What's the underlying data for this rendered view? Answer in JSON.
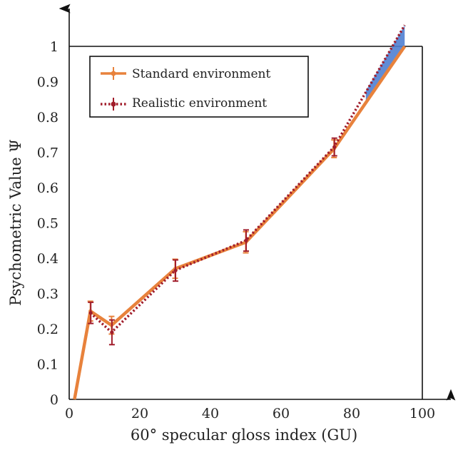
{
  "chart_data": {
    "type": "line",
    "title": "",
    "xlabel": "60° specular gloss index (GU)",
    "ylabel": "Psychometric Value  Ψ",
    "xlim": [
      0,
      100
    ],
    "ylim": [
      0,
      1
    ],
    "x_ticks": [
      "0",
      "20",
      "40",
      "60",
      "80",
      "100"
    ],
    "y_ticks": [
      "0",
      "0.1",
      "0.2",
      "0.3",
      "0.4",
      "0.5",
      "0.6",
      "0.7",
      "0.8",
      "0.9",
      "1"
    ],
    "legend_position": "top-left",
    "grid": false,
    "series": [
      {
        "name": "Standard environment",
        "color": "#e8823c",
        "style": "solid",
        "points": [
          {
            "x": 1.5,
            "y": 0.0
          },
          {
            "x": 6,
            "y": 0.25,
            "err": 0.028
          },
          {
            "x": 12,
            "y": 0.21,
            "err": 0.025
          },
          {
            "x": 30,
            "y": 0.37,
            "err": 0.027
          },
          {
            "x": 50,
            "y": 0.445,
            "err": 0.03
          },
          {
            "x": 75,
            "y": 0.71,
            "err": 0.025
          },
          {
            "x": 95,
            "y": 1.0
          }
        ]
      },
      {
        "name": "Realistic environment",
        "color": "#a11d2b",
        "style": "dotted",
        "points": [
          {
            "x": 6,
            "y": 0.245,
            "err": 0.03
          },
          {
            "x": 12,
            "y": 0.19,
            "err": 0.035
          },
          {
            "x": 30,
            "y": 0.365,
            "err": 0.03
          },
          {
            "x": 50,
            "y": 0.45,
            "err": 0.03
          },
          {
            "x": 75,
            "y": 0.715,
            "err": 0.025
          },
          {
            "x": 95,
            "y": 1.06
          }
        ]
      }
    ],
    "band_color": "#4f7fd1"
  }
}
